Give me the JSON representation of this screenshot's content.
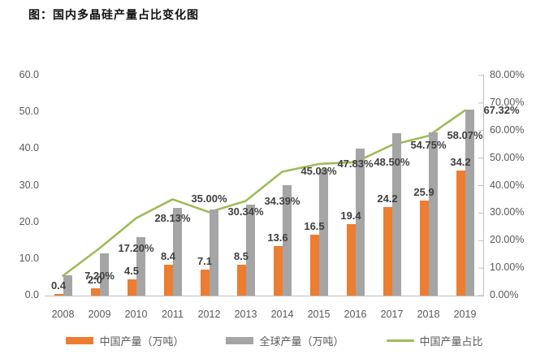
{
  "title": "图：国内多晶硅产量占比变化图",
  "colors": {
    "china_bar": "#ED7D31",
    "global_bar": "#A5A5A5",
    "share_line": "#9FBB59",
    "axis_text": "#595959",
    "data_label_text": "#3f3f3f",
    "axis_line": "#BFBFBF"
  },
  "chart_data": {
    "type": "bar",
    "subtype": "combo-bar-line-dual-axis",
    "categories": [
      "2008",
      "2009",
      "2010",
      "2011",
      "2012",
      "2013",
      "2014",
      "2015",
      "2016",
      "2017",
      "2018",
      "2019"
    ],
    "series": [
      {
        "name": "中国产量（万吨）",
        "type": "bar",
        "axis": "left",
        "values": [
          0.4,
          2.0,
          4.5,
          8.4,
          7.1,
          8.5,
          13.6,
          16.5,
          19.4,
          24.2,
          25.9,
          34.2
        ],
        "data_labels": [
          "0.4",
          "2.0",
          "4.5",
          "8.4",
          "7.1",
          "8.5",
          "13.6",
          "16.5",
          "19.4",
          "24.2",
          "25.9",
          "34.2"
        ]
      },
      {
        "name": "全球产量（万吨）",
        "type": "bar",
        "axis": "left",
        "values": [
          5.6,
          11.6,
          16.0,
          24.0,
          23.4,
          24.7,
          30.2,
          34.5,
          40.0,
          44.2,
          44.6,
          50.8
        ],
        "data_labels": null,
        "note_values_estimated_from_axis": true
      },
      {
        "name": "中国产量占比",
        "type": "line",
        "axis": "right",
        "values": [
          7.2,
          17.2,
          28.13,
          35.0,
          30.34,
          34.39,
          45.03,
          47.83,
          48.5,
          54.75,
          58.07,
          67.32
        ],
        "data_labels": [
          "7.20%",
          "17.20%",
          "28.13%",
          "35.00%",
          "30.34%",
          "34.39%",
          "45.03%",
          "47.83%",
          "48.50%",
          "54.75%",
          "58.07%",
          "67.32%"
        ]
      }
    ],
    "left_axis": {
      "min": 0,
      "max": 60,
      "ticks": [
        "0.0",
        "10.0",
        "20.0",
        "30.0",
        "40.0",
        "50.0",
        "60.0"
      ]
    },
    "right_axis": {
      "min": 0,
      "max": 80,
      "ticks": [
        "0.00%",
        "10.00%",
        "20.00%",
        "30.00%",
        "40.00%",
        "50.00%",
        "60.00%",
        "70.00%",
        "80.00%"
      ]
    },
    "legend_position": "bottom",
    "grid": false
  }
}
